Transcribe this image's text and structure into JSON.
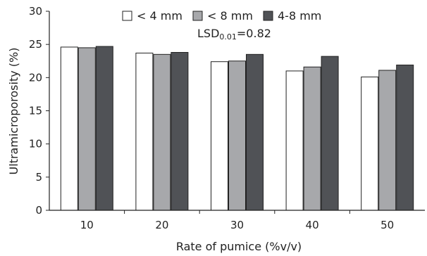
{
  "chart_data": {
    "type": "bar",
    "categories": [
      "10",
      "20",
      "30",
      "40",
      "50"
    ],
    "series": [
      {
        "name": "< 4 mm",
        "values": [
          24.6,
          23.7,
          22.4,
          21.0,
          20.1
        ],
        "color": "#ffffff"
      },
      {
        "name": "< 8 mm",
        "values": [
          24.5,
          23.5,
          22.5,
          21.6,
          21.1
        ],
        "color": "#a7a8ab"
      },
      {
        "name": "4-8 mm",
        "values": [
          24.7,
          23.8,
          23.5,
          23.2,
          21.9
        ],
        "color": "#505256"
      }
    ],
    "xlabel": "Rate of pumice (%v/v)",
    "ylabel": "Ultramicroporosity (%)",
    "ylim": [
      0,
      30
    ],
    "yticks": [
      "0",
      "5",
      "10",
      "15",
      "20",
      "25",
      "30"
    ],
    "grid": false,
    "legend_position": "top-center",
    "annotation": {
      "text": "LSD",
      "subscript": "0.01",
      "suffix": "=0.82"
    }
  }
}
